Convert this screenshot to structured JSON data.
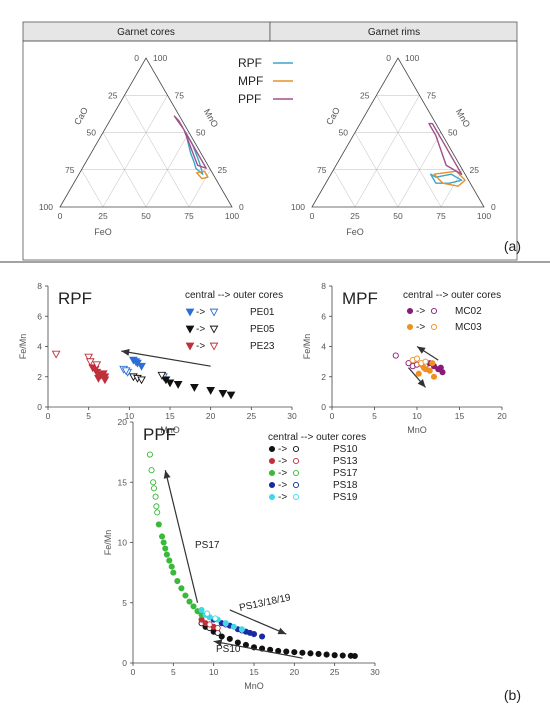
{
  "top_section": {
    "header_left": "Garnet cores",
    "header_right": "Garnet rims",
    "ternary_ticks": [
      "0",
      "25",
      "50",
      "75",
      "100"
    ],
    "apex_labels": {
      "left": "CaO",
      "right": "MnO",
      "bottom": "FeO"
    },
    "legend": [
      {
        "label": "RPF",
        "color": "#3aa6c8"
      },
      {
        "label": "MPF",
        "color": "#e8902a"
      },
      {
        "label": "PPF",
        "color": "#a0508a"
      }
    ],
    "panel_label": "(a)"
  },
  "bottom_section": {
    "panel_label": "(b)"
  },
  "chart_data": [
    {
      "type": "ternary",
      "title": "Garnet cores",
      "axes": [
        "FeO",
        "CaO",
        "MnO"
      ],
      "series": [
        {
          "name": "RPF",
          "color": "#3aa6c8",
          "points": [
            {
              "FeO": 48,
              "MnO": 50,
              "CaO": 2
            },
            {
              "FeO": 58,
              "MnO": 36,
              "CaO": 6
            },
            {
              "FeO": 63,
              "MnO": 30,
              "CaO": 7
            },
            {
              "FeO": 66,
              "MnO": 26,
              "CaO": 8
            },
            {
              "FeO": 72,
              "MnO": 22,
              "CaO": 6
            },
            {
              "FeO": 66,
              "MnO": 30,
              "CaO": 4
            },
            {
              "FeO": 56,
              "MnO": 42,
              "CaO": 2
            }
          ]
        },
        {
          "name": "MPF",
          "color": "#e8902a",
          "points": [
            {
              "FeO": 68,
              "MnO": 23,
              "CaO": 9
            },
            {
              "FeO": 73,
              "MnO": 19,
              "CaO": 8
            },
            {
              "FeO": 76,
              "MnO": 20,
              "CaO": 4
            },
            {
              "FeO": 72,
              "MnO": 24,
              "CaO": 4
            }
          ]
        },
        {
          "name": "PPF",
          "color": "#a0508a",
          "points": [
            {
              "FeO": 36,
              "MnO": 61,
              "CaO": 3
            },
            {
              "FeO": 46,
              "MnO": 52,
              "CaO": 2
            },
            {
              "FeO": 56,
              "MnO": 40,
              "CaO": 4
            },
            {
              "FeO": 66,
              "MnO": 28,
              "CaO": 6
            },
            {
              "FeO": 72,
              "MnO": 26,
              "CaO": 2
            },
            {
              "FeO": 62,
              "MnO": 36,
              "CaO": 2
            },
            {
              "FeO": 50,
              "MnO": 48,
              "CaO": 2
            },
            {
              "FeO": 40,
              "MnO": 58,
              "CaO": 2
            }
          ]
        }
      ]
    },
    {
      "type": "ternary",
      "title": "Garnet rims",
      "axes": [
        "FeO",
        "CaO",
        "MnO"
      ],
      "series": [
        {
          "name": "RPF",
          "color": "#3aa6c8",
          "points": [
            {
              "FeO": 58,
              "MnO": 22,
              "CaO": 20
            },
            {
              "FeO": 62,
              "MnO": 20,
              "CaO": 18
            },
            {
              "FeO": 70,
              "MnO": 22,
              "CaO": 8
            },
            {
              "FeO": 78,
              "MnO": 18,
              "CaO": 4
            },
            {
              "FeO": 72,
              "MnO": 16,
              "CaO": 12
            },
            {
              "FeO": 64,
              "MnO": 16,
              "CaO": 20
            }
          ]
        },
        {
          "name": "MPF",
          "color": "#e8902a",
          "points": [
            {
              "FeO": 60,
              "MnO": 22,
              "CaO": 18
            },
            {
              "FeO": 68,
              "MnO": 16,
              "CaO": 16
            },
            {
              "FeO": 78,
              "MnO": 14,
              "CaO": 8
            },
            {
              "FeO": 80,
              "MnO": 18,
              "CaO": 2
            },
            {
              "FeO": 72,
              "MnO": 24,
              "CaO": 4
            }
          ]
        },
        {
          "name": "PPF",
          "color": "#a0508a",
          "points": [
            {
              "FeO": 40,
              "MnO": 56,
              "CaO": 4
            },
            {
              "FeO": 48,
              "MnO": 48,
              "CaO": 4
            },
            {
              "FeO": 56,
              "MnO": 38,
              "CaO": 6
            },
            {
              "FeO": 64,
              "MnO": 28,
              "CaO": 8
            },
            {
              "FeO": 72,
              "MnO": 24,
              "CaO": 4
            },
            {
              "FeO": 76,
              "MnO": 22,
              "CaO": 2
            },
            {
              "FeO": 66,
              "MnO": 32,
              "CaO": 2
            },
            {
              "FeO": 52,
              "MnO": 46,
              "CaO": 2
            },
            {
              "FeO": 42,
              "MnO": 56,
              "CaO": 2
            }
          ]
        }
      ]
    },
    {
      "type": "scatter",
      "title": "RPF",
      "xlabel": "MnO",
      "ylabel": "Fe/Mn",
      "xlim": [
        0,
        30
      ],
      "ylim": [
        0,
        8
      ],
      "xticks": [
        "0",
        "5",
        "10",
        "15",
        "20",
        "25",
        "30"
      ],
      "yticks": [
        "0",
        "2",
        "4",
        "6",
        "8"
      ],
      "legend_title": "central --> outer cores",
      "series": [
        {
          "name": "PE01",
          "color": "#2a6fd6",
          "filled": [
            [
              10.5,
              3.1
            ],
            [
              11.0,
              2.9
            ],
            [
              11.5,
              2.7
            ],
            [
              10.8,
              3.0
            ]
          ],
          "open": [
            [
              9.3,
              2.5
            ],
            [
              9.8,
              2.3
            ],
            [
              14.2,
              2.0
            ],
            [
              9.6,
              2.4
            ]
          ]
        },
        {
          "name": "PE05",
          "color": "#111111",
          "filled": [
            [
              15.0,
              1.6
            ],
            [
              16.0,
              1.5
            ],
            [
              18.0,
              1.3
            ],
            [
              20.0,
              1.1
            ],
            [
              21.5,
              0.9
            ],
            [
              22.5,
              0.8
            ],
            [
              14.5,
              1.8
            ]
          ],
          "open": [
            [
              10.5,
              2.0
            ],
            [
              11.0,
              1.9
            ],
            [
              14.0,
              2.1
            ],
            [
              11.5,
              1.8
            ]
          ]
        },
        {
          "name": "PE23",
          "color": "#c0303a",
          "filled": [
            [
              5.5,
              2.6
            ],
            [
              6.0,
              2.3
            ],
            [
              6.5,
              2.1
            ],
            [
              7.0,
              2.0
            ],
            [
              6.2,
              1.9
            ],
            [
              6.8,
              2.2
            ],
            [
              5.8,
              2.5
            ],
            [
              7.0,
              1.8
            ]
          ],
          "open": [
            [
              1.0,
              3.5
            ],
            [
              5.0,
              3.3
            ],
            [
              6.0,
              2.8
            ],
            [
              5.2,
              3.0
            ]
          ]
        }
      ],
      "arrows": [
        {
          "from": [
            20,
            2.7
          ],
          "to": [
            9,
            3.7
          ]
        }
      ]
    },
    {
      "type": "scatter",
      "title": "MPF",
      "xlabel": "MnO",
      "ylabel": "Fe/Mn",
      "xlim": [
        0,
        20
      ],
      "ylim": [
        0,
        8
      ],
      "xticks": [
        "0",
        "5",
        "10",
        "15",
        "20"
      ],
      "yticks": [
        "0",
        "2",
        "4",
        "6",
        "8"
      ],
      "legend_title": "central --> outer cores",
      "series": [
        {
          "name": "MC02",
          "color": "#8a1a78",
          "filled": [
            [
              12.0,
              2.7
            ],
            [
              12.5,
              2.5
            ],
            [
              13.0,
              2.3
            ],
            [
              11.5,
              2.9
            ],
            [
              12.8,
              2.6
            ]
          ],
          "open": [
            [
              7.5,
              3.4
            ],
            [
              9.0,
              2.9
            ],
            [
              9.5,
              2.7
            ],
            [
              10.0,
              2.8
            ],
            [
              11.0,
              2.7
            ]
          ]
        },
        {
          "name": "MC03",
          "color": "#f0901e",
          "filled": [
            [
              10.5,
              2.8
            ],
            [
              11.0,
              2.5
            ],
            [
              10.2,
              2.2
            ],
            [
              11.5,
              2.4
            ],
            [
              12.0,
              2.0
            ],
            [
              10.8,
              2.6
            ],
            [
              11.8,
              2.9
            ]
          ],
          "open": [
            [
              9.5,
              3.1
            ],
            [
              10.0,
              3.2
            ],
            [
              10.5,
              2.9
            ],
            [
              11.0,
              3.0
            ]
          ]
        }
      ],
      "arrows": [
        {
          "from": [
            12.5,
            3.1
          ],
          "to": [
            10.0,
            4.0
          ]
        },
        {
          "from": [
            9.0,
            2.6
          ],
          "to": [
            11.0,
            1.3
          ]
        }
      ]
    },
    {
      "type": "scatter",
      "title": "PPF",
      "xlabel": "MnO",
      "ylabel": "Fe/Mn",
      "xlim": [
        0,
        30
      ],
      "ylim": [
        0,
        20
      ],
      "xticks": [
        "0",
        "5",
        "10",
        "15",
        "20",
        "25",
        "30"
      ],
      "yticks": [
        "0",
        "5",
        "10",
        "15",
        "20"
      ],
      "legend_title": "central --> outer cores",
      "series": [
        {
          "name": "PS10",
          "color": "#111111",
          "filled": [
            [
              9.0,
              3.0
            ],
            [
              10.0,
              2.6
            ],
            [
              11.0,
              2.2
            ],
            [
              12.0,
              2.0
            ],
            [
              13.0,
              1.7
            ],
            [
              14.0,
              1.5
            ],
            [
              15.0,
              1.3
            ],
            [
              16.0,
              1.2
            ],
            [
              17.0,
              1.1
            ],
            [
              18.0,
              1.0
            ],
            [
              19.0,
              0.95
            ],
            [
              20.0,
              0.9
            ],
            [
              21.0,
              0.85
            ],
            [
              22.0,
              0.8
            ],
            [
              23.0,
              0.75
            ],
            [
              24.0,
              0.7
            ],
            [
              25.0,
              0.65
            ],
            [
              26.0,
              0.62
            ],
            [
              27.0,
              0.6
            ],
            [
              27.5,
              0.58
            ]
          ],
          "open": [
            [
              8.5,
              3.3
            ],
            [
              9.5,
              2.9
            ],
            [
              10.5,
              2.5
            ]
          ]
        },
        {
          "name": "PS13",
          "color": "#c0303a",
          "filled": [
            [
              8.5,
              3.6
            ],
            [
              9.0,
              3.3
            ],
            [
              10.0,
              3.0
            ]
          ],
          "open": [
            [
              9.5,
              3.2
            ],
            [
              10.5,
              2.9
            ]
          ]
        },
        {
          "name": "PS17",
          "color": "#3ab83a",
          "filled": [
            [
              3.2,
              11.5
            ],
            [
              3.6,
              10.5
            ],
            [
              4.0,
              9.5
            ],
            [
              4.5,
              8.5
            ],
            [
              5.0,
              7.5
            ],
            [
              5.5,
              6.8
            ],
            [
              6.0,
              6.2
            ],
            [
              6.5,
              5.6
            ],
            [
              7.0,
              5.1
            ],
            [
              7.5,
              4.7
            ],
            [
              8.0,
              4.3
            ],
            [
              8.5,
              4.0
            ],
            [
              3.8,
              10.0
            ],
            [
              4.2,
              9.0
            ],
            [
              4.8,
              8.0
            ]
          ],
          "open": [
            [
              2.1,
              17.3
            ],
            [
              2.3,
              16.0
            ],
            [
              2.5,
              15.0
            ],
            [
              2.6,
              14.5
            ],
            [
              2.8,
              13.8
            ],
            [
              3.0,
              12.5
            ],
            [
              2.9,
              13.0
            ]
          ]
        },
        {
          "name": "PS18",
          "color": "#1a2aa0",
          "filled": [
            [
              10.0,
              3.6
            ],
            [
              11.0,
              3.3
            ],
            [
              12.0,
              3.1
            ],
            [
              13.0,
              2.8
            ],
            [
              14.0,
              2.6
            ],
            [
              15.0,
              2.4
            ],
            [
              16.0,
              2.2
            ],
            [
              14.5,
              2.5
            ]
          ],
          "open": [
            [
              11.5,
              3.2
            ],
            [
              13.5,
              2.7
            ]
          ]
        },
        {
          "name": "PS19",
          "color": "#40d8e8",
          "filled": [
            [
              8.5,
              4.4
            ],
            [
              9.0,
              4.0
            ],
            [
              9.5,
              3.8
            ],
            [
              10.5,
              3.6
            ],
            [
              11.5,
              3.3
            ],
            [
              12.5,
              3.0
            ],
            [
              13.5,
              2.8
            ]
          ],
          "open": [
            [
              9.2,
              4.1
            ],
            [
              10.2,
              3.7
            ]
          ]
        }
      ],
      "annotations": [
        "PS17",
        "PS13/18/19",
        "PS10"
      ],
      "arrows": [
        {
          "from": [
            8.0,
            5.0
          ],
          "to": [
            4.0,
            16.0
          ]
        },
        {
          "from": [
            12.0,
            4.4
          ],
          "to": [
            19.0,
            2.4
          ]
        },
        {
          "from": [
            21.0,
            0.4
          ],
          "to": [
            10.0,
            1.8
          ]
        }
      ]
    }
  ]
}
